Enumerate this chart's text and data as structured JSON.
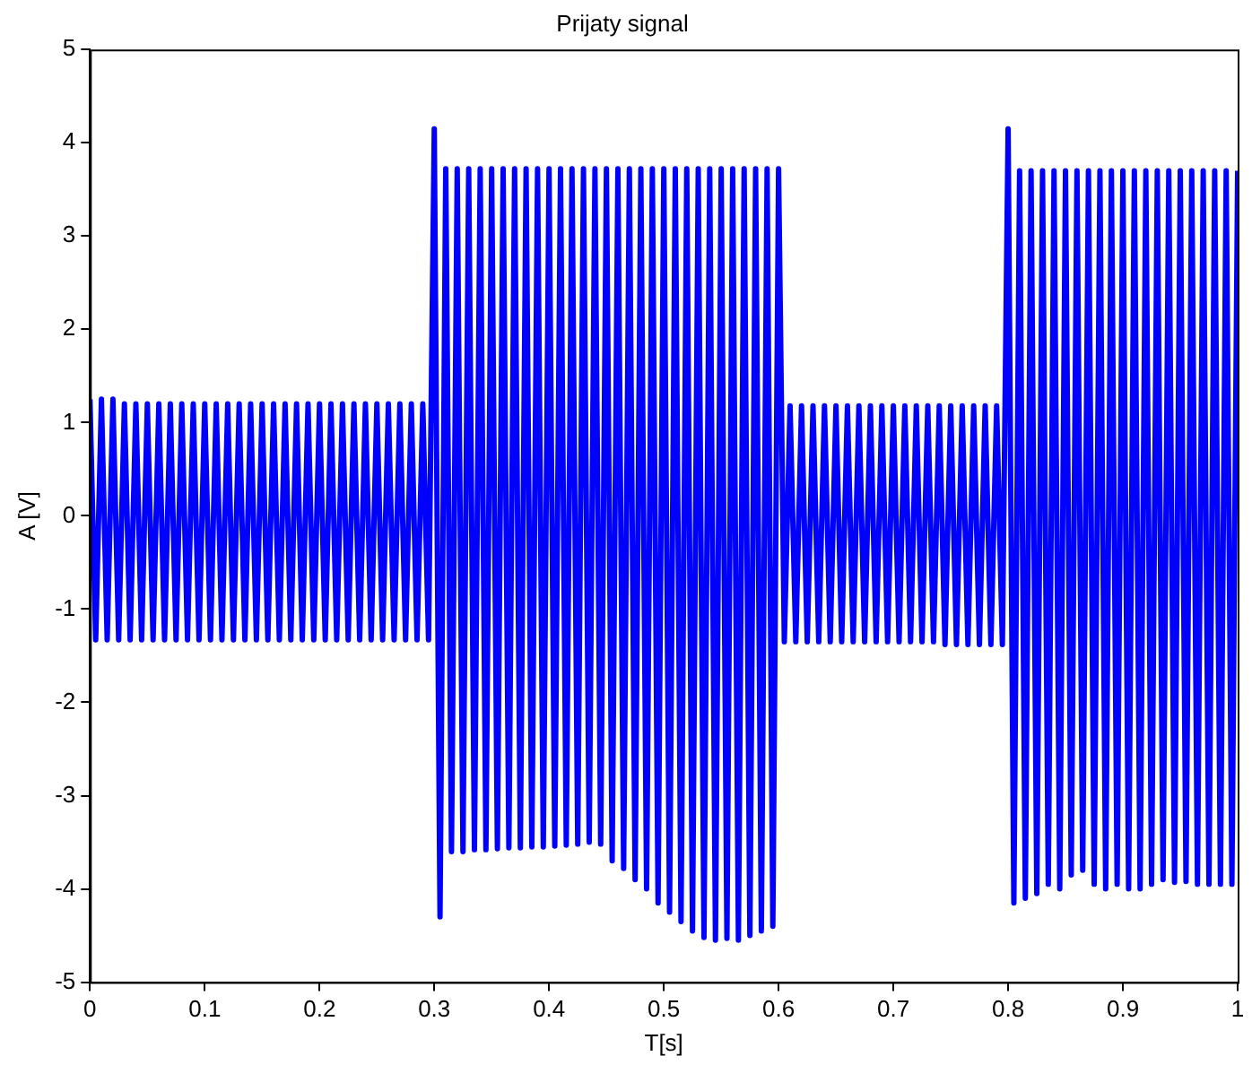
{
  "chart_data": {
    "type": "line",
    "title": "Prijaty signal",
    "xlabel": "T[s]",
    "ylabel": "A [V]",
    "xlim": [
      0,
      1
    ],
    "xticks": [
      0,
      0.1,
      0.2,
      0.3,
      0.4,
      0.5,
      0.6,
      0.7,
      0.8,
      0.9,
      1
    ],
    "ylim": [
      -5,
      5
    ],
    "yticks": [
      -5,
      -4,
      -3,
      -2,
      -1,
      0,
      1,
      2,
      3,
      4,
      5
    ],
    "grid": false,
    "legend": false,
    "series": [
      {
        "color": "#0000ff",
        "x": [
          0,
          0.005,
          0.01,
          0.015,
          0.02,
          0.025,
          0.03,
          0.035,
          0.04,
          0.045,
          0.05,
          0.055,
          0.06,
          0.065,
          0.07,
          0.075,
          0.08,
          0.085,
          0.09,
          0.095,
          0.1,
          0.105,
          0.11,
          0.115,
          0.12,
          0.125,
          0.13,
          0.135,
          0.14,
          0.145,
          0.15,
          0.155,
          0.16,
          0.165,
          0.17,
          0.175,
          0.18,
          0.185,
          0.19,
          0.195,
          0.2,
          0.205,
          0.21,
          0.215,
          0.22,
          0.225,
          0.23,
          0.235,
          0.24,
          0.245,
          0.25,
          0.255,
          0.26,
          0.265,
          0.27,
          0.275,
          0.28,
          0.285,
          0.29,
          0.295,
          0.3,
          0.305,
          0.31,
          0.315,
          0.32,
          0.325,
          0.33,
          0.335,
          0.34,
          0.345,
          0.35,
          0.355,
          0.36,
          0.365,
          0.37,
          0.375,
          0.38,
          0.385,
          0.39,
          0.395,
          0.4,
          0.405,
          0.41,
          0.415,
          0.42,
          0.425,
          0.43,
          0.435,
          0.44,
          0.445,
          0.45,
          0.455,
          0.46,
          0.465,
          0.47,
          0.475,
          0.48,
          0.485,
          0.49,
          0.495,
          0.5,
          0.505,
          0.51,
          0.515,
          0.52,
          0.525,
          0.53,
          0.535,
          0.54,
          0.545,
          0.55,
          0.555,
          0.56,
          0.565,
          0.57,
          0.575,
          0.58,
          0.585,
          0.59,
          0.595,
          0.6,
          0.605,
          0.61,
          0.615,
          0.62,
          0.625,
          0.63,
          0.635,
          0.64,
          0.645,
          0.65,
          0.655,
          0.66,
          0.665,
          0.67,
          0.675,
          0.68,
          0.685,
          0.69,
          0.695,
          0.7,
          0.705,
          0.71,
          0.715,
          0.72,
          0.725,
          0.73,
          0.735,
          0.74,
          0.745,
          0.75,
          0.755,
          0.76,
          0.765,
          0.77,
          0.775,
          0.78,
          0.785,
          0.79,
          0.795,
          0.8,
          0.805,
          0.81,
          0.815,
          0.82,
          0.825,
          0.83,
          0.835,
          0.84,
          0.845,
          0.85,
          0.855,
          0.86,
          0.865,
          0.87,
          0.875,
          0.88,
          0.885,
          0.89,
          0.895,
          0.9,
          0.905,
          0.91,
          0.915,
          0.92,
          0.925,
          0.93,
          0.935,
          0.94,
          0.945,
          0.95,
          0.955,
          0.96,
          0.965,
          0.97,
          0.975,
          0.98,
          0.985,
          0.99,
          0.995,
          1
        ],
        "values": [
          1.25,
          -1.33,
          1.25,
          -1.33,
          1.25,
          -1.33,
          1.2,
          -1.33,
          1.2,
          -1.33,
          1.2,
          -1.33,
          1.2,
          -1.33,
          1.2,
          -1.33,
          1.2,
          -1.33,
          1.2,
          -1.33,
          1.2,
          -1.33,
          1.2,
          -1.33,
          1.2,
          -1.33,
          1.2,
          -1.33,
          1.2,
          -1.33,
          1.2,
          -1.33,
          1.2,
          -1.33,
          1.2,
          -1.33,
          1.2,
          -1.33,
          1.2,
          -1.33,
          1.2,
          -1.33,
          1.2,
          -1.33,
          1.2,
          -1.33,
          1.2,
          -1.33,
          1.2,
          -1.33,
          1.2,
          -1.33,
          1.2,
          -1.33,
          1.2,
          -1.33,
          1.2,
          -1.33,
          1.2,
          -1.33,
          4.15,
          -4.3,
          3.72,
          -3.6,
          3.72,
          -3.6,
          3.72,
          -3.58,
          3.72,
          -3.58,
          3.72,
          -3.57,
          3.72,
          -3.56,
          3.72,
          -3.56,
          3.72,
          -3.55,
          3.72,
          -3.55,
          3.72,
          -3.54,
          3.72,
          -3.53,
          3.72,
          -3.52,
          3.72,
          -3.5,
          3.72,
          -3.52,
          3.72,
          -3.7,
          3.72,
          -3.78,
          3.72,
          -3.9,
          3.72,
          -4.0,
          3.72,
          -4.15,
          3.72,
          -4.25,
          3.72,
          -4.35,
          3.72,
          -4.45,
          3.72,
          -4.52,
          3.72,
          -4.55,
          3.72,
          -4.53,
          3.72,
          -4.55,
          3.72,
          -4.5,
          3.72,
          -4.45,
          3.72,
          -4.4,
          3.72,
          -1.35,
          1.18,
          -1.35,
          1.18,
          -1.35,
          1.18,
          -1.35,
          1.18,
          -1.35,
          1.18,
          -1.35,
          1.18,
          -1.35,
          1.18,
          -1.35,
          1.18,
          -1.35,
          1.18,
          -1.35,
          1.18,
          -1.35,
          1.18,
          -1.35,
          1.18,
          -1.35,
          1.18,
          -1.35,
          1.18,
          -1.38,
          1.18,
          -1.38,
          1.18,
          -1.38,
          1.18,
          -1.38,
          1.18,
          -1.38,
          1.18,
          -1.38,
          4.15,
          -4.15,
          3.7,
          -4.1,
          3.7,
          -4.05,
          3.7,
          -3.95,
          3.7,
          -4.0,
          3.7,
          -3.85,
          3.7,
          -3.8,
          3.7,
          -3.95,
          3.7,
          -4.0,
          3.7,
          -3.95,
          3.7,
          -4.0,
          3.7,
          -4.0,
          3.7,
          -3.95,
          3.7,
          -3.9,
          3.7,
          -3.93,
          3.7,
          -3.92,
          3.7,
          -3.95,
          3.7,
          -3.95,
          3.7,
          -3.95,
          3.7,
          -3.95,
          3.7
        ]
      }
    ]
  }
}
